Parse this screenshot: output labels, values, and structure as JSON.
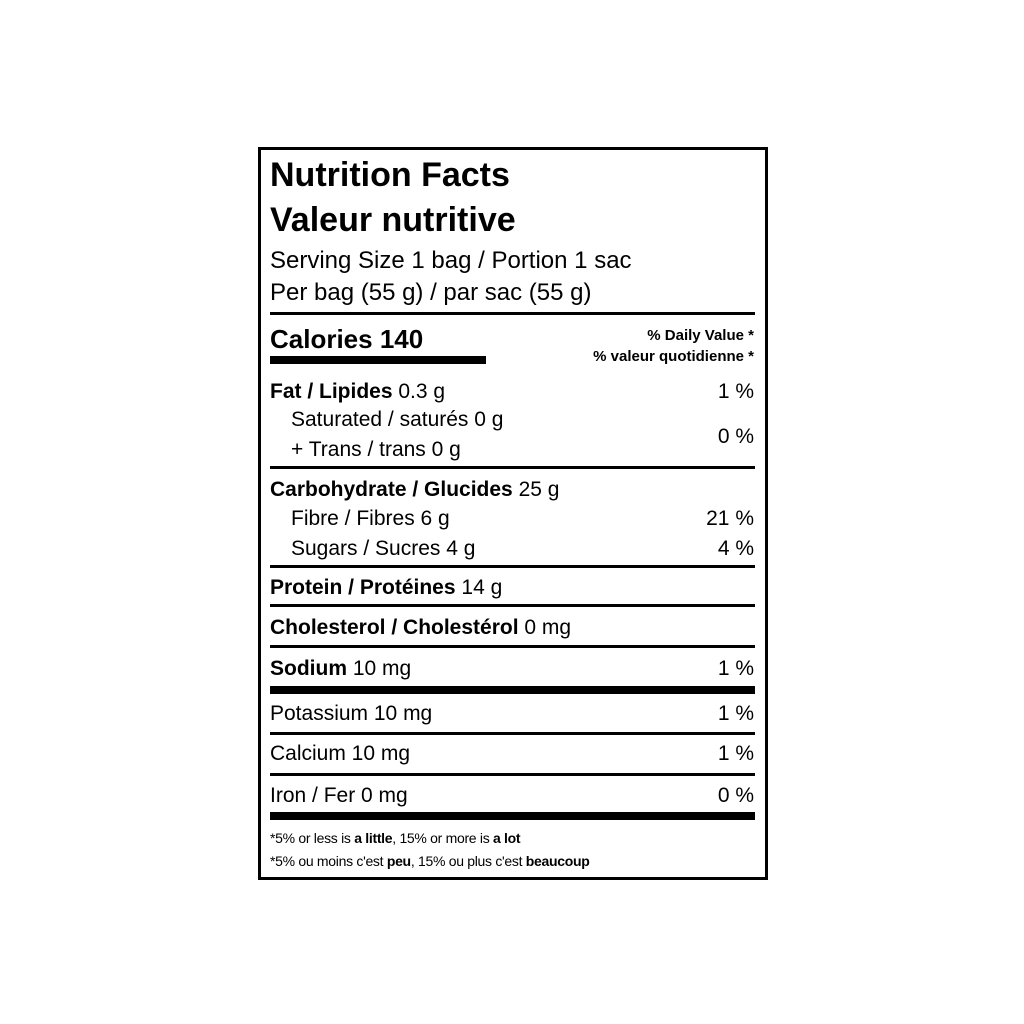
{
  "title_en": "Nutrition Facts",
  "title_fr": "Valeur nutritive",
  "serving_size": "Serving Size 1 bag / Portion 1 sac",
  "per": "Per bag (55 g) / par sac (55 g)",
  "calories_label": "Calories 140",
  "dv_en": "% Daily Value *",
  "dv_fr": "% valeur quotidienne *",
  "nutrients": {
    "fat": {
      "label": "Fat / Lipides",
      "amount": "0.3 g",
      "dv": "1 %"
    },
    "saturated": {
      "label": "Saturated / saturés 0 g"
    },
    "trans": {
      "label": "+ Trans / trans 0 g",
      "dv": "0 %"
    },
    "carb": {
      "label": "Carbohydrate / Glucides",
      "amount": "25 g"
    },
    "fibre": {
      "label": "Fibre / Fibres 6 g",
      "dv": "21 %"
    },
    "sugars": {
      "label": "Sugars / Sucres 4 g",
      "dv": "4 %"
    },
    "protein": {
      "label": "Protein / Protéines",
      "amount": "14 g"
    },
    "cholesterol": {
      "label": "Cholesterol / Cholestérol",
      "amount": "0 mg"
    },
    "sodium": {
      "label": "Sodium",
      "amount": "10 mg",
      "dv": "1 %"
    },
    "potassium": {
      "label": "Potassium 10 mg",
      "dv": "1 %"
    },
    "calcium": {
      "label": "Calcium 10 mg",
      "dv": "1 %"
    },
    "iron": {
      "label": "Iron / Fer 0 mg",
      "dv": "0 %"
    }
  },
  "footnote_en": {
    "a": "*5% or less is ",
    "b": "a little",
    "c": ", 15% or more is ",
    "d": "a lot"
  },
  "footnote_fr": {
    "a": "*5% ou moins c'est ",
    "b": "peu",
    "c": ", 15% ou plus c'est ",
    "d": "beaucoup"
  }
}
